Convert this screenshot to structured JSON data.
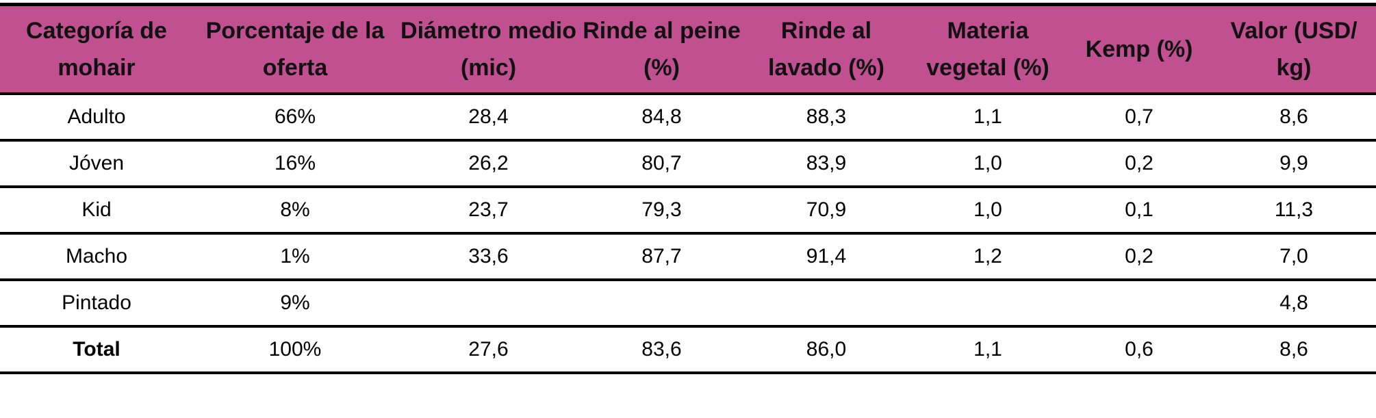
{
  "table": {
    "header": [
      "Categoría de mohair",
      "Porcentaje de la oferta",
      "Diámetro medio (mic)",
      "Rinde al peine (%)",
      "Rinde al lavado (%)",
      "Materia vegetal (%)",
      "Kemp (%)",
      "Valor (USD/ kg)"
    ],
    "rows": [
      [
        "Adulto",
        "66%",
        "28,4",
        "84,8",
        "88,3",
        "1,1",
        "0,7",
        "8,6"
      ],
      [
        "Jóven",
        "16%",
        "26,2",
        "80,7",
        "83,9",
        "1,0",
        "0,2",
        "9,9"
      ],
      [
        "Kid",
        "8%",
        "23,7",
        "79,3",
        "70,9",
        "1,0",
        "0,1",
        "11,3"
      ],
      [
        "Macho",
        "1%",
        "33,6",
        "87,7",
        "91,4",
        "1,2",
        "0,2",
        "7,0"
      ],
      [
        "Pintado",
        "9%",
        null,
        null,
        null,
        null,
        null,
        "4,8"
      ],
      [
        "Total",
        "100%",
        "27,6",
        "83,6",
        "86,0",
        "1,1",
        "0,6",
        "8,6"
      ]
    ]
  }
}
